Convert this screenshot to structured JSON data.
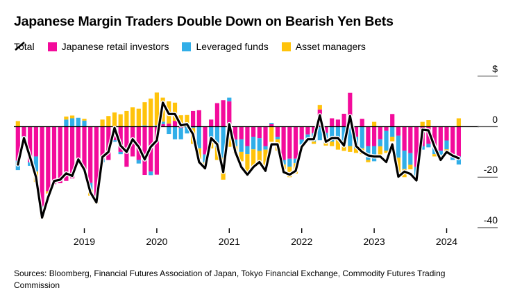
{
  "header": {
    "title": "Japanese Margin Traders Double Down on Bearish Yen Bets"
  },
  "legend": {
    "items": [
      {
        "label": "Total",
        "type": "line-glyph",
        "color": "#000000"
      },
      {
        "label": "Japanese retail investors",
        "type": "swatch",
        "color": "#f30b9b"
      },
      {
        "label": "Leveraged funds",
        "type": "swatch",
        "color": "#31aee8"
      },
      {
        "label": "Asset managers",
        "type": "swatch",
        "color": "#ffc30b"
      }
    ]
  },
  "y_axis": {
    "unit_label": "$",
    "ticks": [
      {
        "label": "$",
        "value": 20
      },
      {
        "label": "0",
        "value": 0
      },
      {
        "label": "-20",
        "value": -20
      },
      {
        "label": "-40",
        "value": -40
      }
    ]
  },
  "x_axis": {
    "years": [
      "2019",
      "2020",
      "2021",
      "2022",
      "2023",
      "2024"
    ]
  },
  "footer": {
    "sources": "Sources: Bloomberg, Financial Futures Association of Japan, Tokyo Financial Exchange, Commodity Futures Trading Commission"
  },
  "chart_data": {
    "type": "bar",
    "variant": "stacked-monthly-bars-with-total-line",
    "title": "Japanese Margin Traders Double Down on Bearish Yen Bets",
    "ylabel": "$",
    "ylim": [
      -44,
      22
    ],
    "yticks": [
      20,
      0,
      -20,
      -40
    ],
    "grid": false,
    "legend_position": "top",
    "x": [
      "2018-02",
      "2018-03",
      "2018-04",
      "2018-05",
      "2018-06",
      "2018-07",
      "2018-08",
      "2018-09",
      "2018-10",
      "2018-11",
      "2018-12",
      "2019-01",
      "2019-02",
      "2019-03",
      "2019-04",
      "2019-05",
      "2019-06",
      "2019-07",
      "2019-08",
      "2019-09",
      "2019-10",
      "2019-11",
      "2019-12",
      "2020-01",
      "2020-02",
      "2020-03",
      "2020-04",
      "2020-05",
      "2020-06",
      "2020-07",
      "2020-08",
      "2020-09",
      "2020-10",
      "2020-11",
      "2020-12",
      "2021-01",
      "2021-02",
      "2021-03",
      "2021-04",
      "2021-05",
      "2021-06",
      "2021-07",
      "2021-08",
      "2021-09",
      "2021-10",
      "2021-11",
      "2021-12",
      "2022-01",
      "2022-02",
      "2022-03",
      "2022-04",
      "2022-05",
      "2022-06",
      "2022-07",
      "2022-08",
      "2022-09",
      "2022-10",
      "2022-11",
      "2022-12",
      "2023-01",
      "2023-02",
      "2023-03",
      "2023-04",
      "2023-05",
      "2023-06",
      "2023-07",
      "2023-08",
      "2023-09",
      "2023-10",
      "2023-11",
      "2023-12",
      "2024-01",
      "2024-02",
      "2024-03"
    ],
    "series": [
      {
        "name": "Japanese retail investors",
        "color": "#f30b9b",
        "values": [
          -13.5,
          -3.9,
          -14.1,
          -11.8,
          -31.6,
          -25.6,
          -22.8,
          -22.4,
          -21.5,
          -20.5,
          -13.7,
          -17.3,
          -22.3,
          -28.3,
          -12.7,
          -13.2,
          -5.4,
          -10.0,
          -15.9,
          -11.8,
          -13.2,
          -19.1,
          -17.8,
          -19.0,
          1.0,
          1.2,
          2.3,
          -0.5,
          0.4,
          6.2,
          6.5,
          -11.0,
          2.8,
          9.3,
          10.5,
          10.0,
          -5.1,
          -5.0,
          -7.7,
          -4.0,
          -4.6,
          -7.7,
          1.0,
          -4.0,
          -13.2,
          -12.7,
          -12.7,
          -5.1,
          -3.1,
          -2.7,
          6.8,
          -2.5,
          3.3,
          2.8,
          5.1,
          13.4,
          -4.0,
          3.1,
          -7.7,
          -7.7,
          -5.0,
          -1.7,
          5.0,
          -3.6,
          -9.5,
          -10.5,
          -16.0,
          -7.7,
          -6.8,
          -7.7,
          -9.5,
          -5.5,
          -10.9,
          -11.8
        ]
      },
      {
        "name": "Leveraged funds",
        "color": "#31aee8",
        "values": [
          -3.7,
          -1.4,
          -1.4,
          -6.0,
          -1.5,
          0,
          0,
          0,
          2.8,
          3.3,
          3.5,
          2.4,
          -2.7,
          -1.5,
          -1.4,
          0,
          -0.6,
          -0.9,
          0,
          0,
          -1.4,
          0.5,
          -1.4,
          0.5,
          1.0,
          -2.9,
          -5.0,
          -4.5,
          -2.7,
          -0.5,
          -8.6,
          -3.2,
          -5.4,
          -8.2,
          -12.3,
          1.5,
          -2.6,
          -5.0,
          -3.2,
          -5.0,
          -5.0,
          -1.4,
          0.5,
          -1.0,
          -1.8,
          -3.2,
          -1.8,
          -2.0,
          -2.8,
          -3.2,
          -5.4,
          -4.0,
          -5.9,
          -5.4,
          -6.8,
          -7.7,
          -4.6,
          -8.6,
          -5.5,
          -6.0,
          -2.8,
          -7.8,
          -4.0,
          -8.7,
          -7.3,
          -4.6,
          -3.7,
          -1.4,
          -1.4,
          -3.2,
          -1.8,
          -3.5,
          -2.3,
          -3.2
        ]
      },
      {
        "name": "Asset managers",
        "color": "#ffc30b",
        "values": [
          2.2,
          0,
          0,
          -4.1,
          -3.3,
          -0.9,
          0,
          0,
          1.2,
          1.1,
          0,
          0.7,
          -2.3,
          -0.7,
          2.8,
          4.2,
          5.6,
          4.9,
          6.2,
          7.7,
          7.1,
          9.2,
          11.1,
          13.0,
          9.5,
          8.8,
          7.2,
          4.5,
          4.2,
          -6.3,
          -4.1,
          -1.0,
          -3.2,
          -5.0,
          -8.7,
          -8.0,
          -2.8,
          -3.7,
          -6.9,
          -6.9,
          -4.6,
          -7.8,
          -6.0,
          -4.5,
          -1.8,
          -4.1,
          -4.1,
          0,
          0,
          -0.9,
          1.8,
          -1.0,
          -1.8,
          -3.7,
          -2.8,
          -2.3,
          -1.8,
          -2.3,
          -0.9,
          1.9,
          -3.2,
          -0.9,
          -1.8,
          -7.3,
          -3.2,
          -1.8,
          -1.8,
          1.9,
          2.6,
          -0.9,
          -1.4,
          -1.0,
          0,
          3.3
        ]
      }
    ],
    "line_series": {
      "name": "Total",
      "color": "#000000",
      "values": [
        -15,
        -4.5,
        -12,
        -20,
        -36,
        -28,
        -21.5,
        -21,
        -18.5,
        -19.5,
        -13,
        -17,
        -26,
        -30,
        -12,
        -10,
        -0.5,
        -7.5,
        -10,
        -5,
        -8,
        -13,
        -8,
        -5.5,
        9.5,
        5,
        5,
        0.5,
        1,
        -3,
        -14,
        -16.5,
        -4.5,
        -7,
        -18,
        1,
        -10,
        -16,
        -19,
        -16,
        -14,
        -17.5,
        -7,
        -7,
        -18,
        -19,
        -17.5,
        -8,
        -5,
        -5,
        4.5,
        -6,
        -4.5,
        -4.5,
        -7.5,
        4.2,
        -7.7,
        -10,
        -11.4,
        -11.8,
        -11.8,
        -14,
        -7,
        -19.8,
        -17.8,
        -18.7,
        -21.3,
        -1.2,
        -1.5,
        -8,
        -13.2,
        -10,
        -11.5,
        -12.5
      ]
    }
  }
}
